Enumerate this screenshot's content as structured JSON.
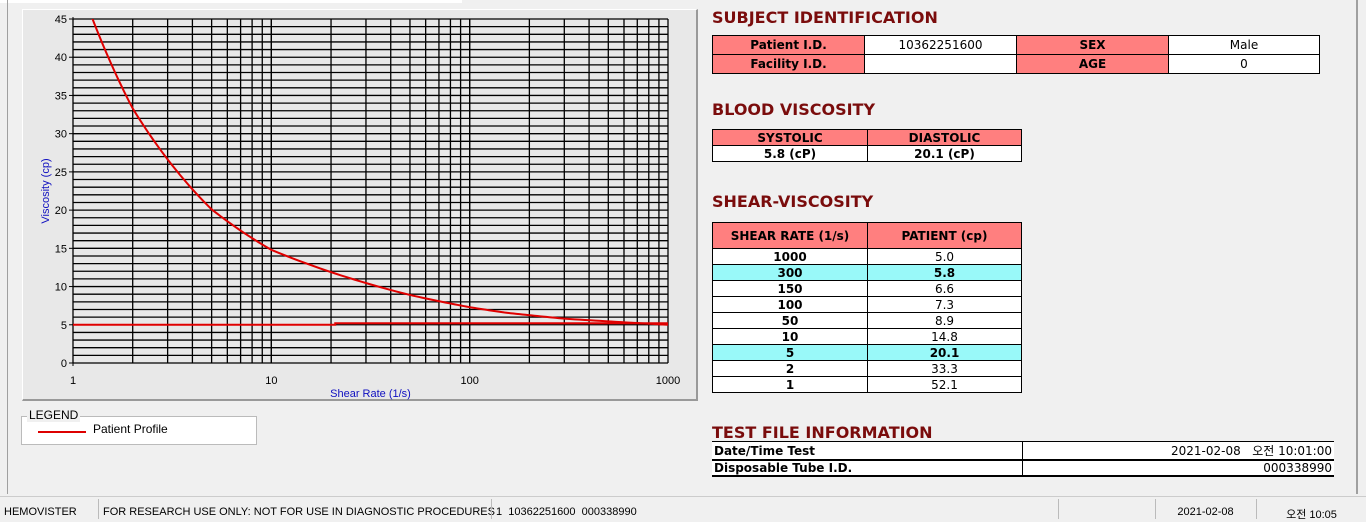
{
  "chart_data": {
    "type": "line",
    "xlabel": "Shear Rate (1/s)",
    "ylabel": "Viscosity (cp)",
    "xscale": "log",
    "xlim": [
      1,
      1000
    ],
    "ylim": [
      0,
      45
    ],
    "xticks": [
      "1",
      "10",
      "100",
      "1000"
    ],
    "yticks": [
      "0",
      "5",
      "10",
      "15",
      "20",
      "25",
      "30",
      "35",
      "40",
      "45"
    ],
    "grid": true,
    "legend_position": "below-left",
    "series": [
      {
        "name": "Patient Profile",
        "color": "#e00000",
        "x": [
          1,
          2,
          5,
          10,
          50,
          100,
          150,
          300,
          1000
        ],
        "y": [
          52.1,
          33.3,
          20.1,
          14.8,
          8.9,
          7.3,
          6.6,
          5.8,
          5.0
        ]
      },
      {
        "color": "#e00000",
        "x": [
          1,
          21,
          21,
          1000
        ],
        "y": [
          5.0,
          5.0,
          5.2,
          5.2
        ]
      }
    ]
  },
  "legend": {
    "title": "LEGEND",
    "item": "Patient Profile"
  },
  "subject": {
    "title": "SUBJECT IDENTIFICATION",
    "patient_id_label": "Patient I.D.",
    "patient_id": "10362251600",
    "sex_label": "SEX",
    "sex": "Male",
    "facility_label": "Facility I.D.",
    "facility": "",
    "age_label": "AGE",
    "age": "0"
  },
  "blood": {
    "title": "BLOOD VISCOSITY",
    "systolic_label": "SYSTOLIC",
    "diastolic_label": "DIASTOLIC",
    "systolic": "5.8 (cP)",
    "diastolic": "20.1 (cP)"
  },
  "shear": {
    "title": "SHEAR-VISCOSITY",
    "col1": "SHEAR RATE (1/s)",
    "col2": "PATIENT (cp)",
    "rows": [
      [
        "1000",
        "5.0"
      ],
      [
        "300",
        "5.8"
      ],
      [
        "150",
        "6.6"
      ],
      [
        "100",
        "7.3"
      ],
      [
        "50",
        "8.9"
      ],
      [
        "10",
        "14.8"
      ],
      [
        "5",
        "20.1"
      ],
      [
        "2",
        "33.3"
      ],
      [
        "1",
        "52.1"
      ]
    ],
    "highlight_color": "#99f9f9"
  },
  "testfile": {
    "title": "TEST FILE INFORMATION",
    "date_label": "Date/Time Test",
    "date": "2021-02-08   오전 10:01:00",
    "tube_label": "Disposable Tube I.D.",
    "tube": "000338990"
  },
  "status": {
    "app": "HEMOVISTER",
    "notice": "FOR RESEARCH USE ONLY: NOT FOR USE IN DIAGNOSTIC PROCEDURES",
    "record": "1  10362251600  000338990",
    "blank": "",
    "date": "2021-02-08",
    "time": "오전 10:05"
  }
}
